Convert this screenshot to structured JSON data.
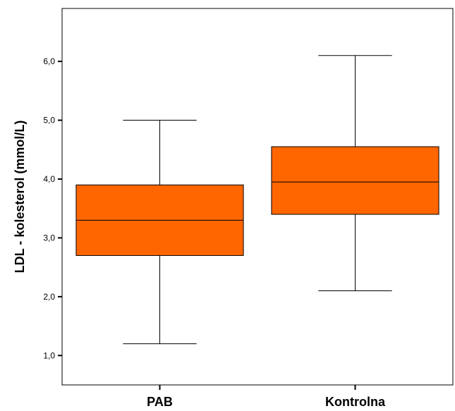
{
  "chart_data": {
    "type": "boxplot",
    "title": "",
    "xlabel": "",
    "ylabel": "LDL - kolesterol (mmol/L)",
    "ylim": [
      0.5,
      6.9
    ],
    "yticks": [
      1.0,
      2.0,
      3.0,
      4.0,
      5.0,
      6.0
    ],
    "ytick_labels": [
      "1,0",
      "2,0",
      "3,0",
      "4,0",
      "5,0",
      "6,0"
    ],
    "categories": [
      "PAB",
      "Kontrolna"
    ],
    "boxes": [
      {
        "category": "PAB",
        "min": 1.2,
        "q1": 2.7,
        "median": 3.3,
        "q3": 3.9,
        "max": 5.0
      },
      {
        "category": "Kontrolna",
        "min": 2.1,
        "q1": 3.4,
        "median": 3.95,
        "q3": 4.55,
        "max": 6.1
      }
    ],
    "box_color": "#FF6600",
    "grid": false
  }
}
